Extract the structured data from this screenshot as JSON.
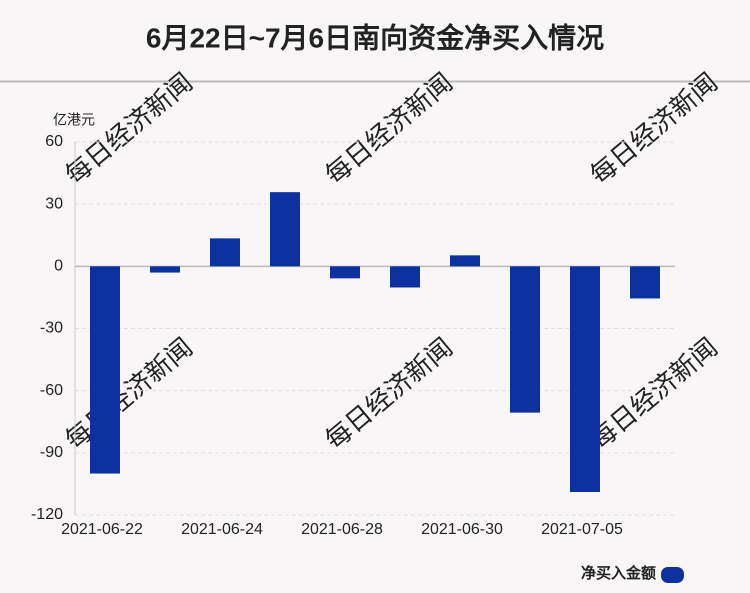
{
  "chart_data": {
    "type": "bar",
    "title": "6月22日~7月6日南向资金净买入情况",
    "y_axis_label": "亿港元",
    "categories": [
      "2021-06-22",
      null,
      "2021-06-24",
      null,
      "2021-06-28",
      null,
      "2021-06-30",
      null,
      "2021-07-05",
      null
    ],
    "series": [
      {
        "name": "净买入金额",
        "color": "#0d32a0",
        "values": [
          -100,
          -3,
          13.5,
          35.8,
          -5.8,
          -10.2,
          5.3,
          -70.6,
          -108.9,
          -15.5
        ]
      }
    ],
    "ylim": [
      -120,
      60
    ],
    "yticks": [
      -120,
      -90,
      -60,
      -30,
      0,
      30,
      60
    ],
    "grid": true,
    "legend": "bottom-right"
  },
  "watermark": "每日经济新闻"
}
